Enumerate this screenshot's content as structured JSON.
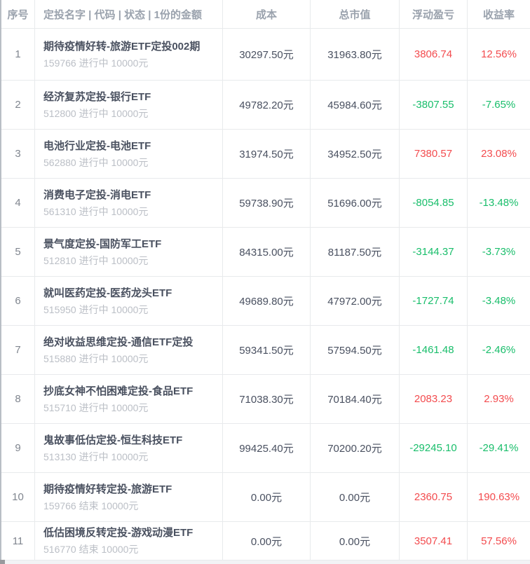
{
  "table": {
    "colors": {
      "profit_red": "#f34b4e",
      "loss_green": "#19be6b"
    },
    "header": {
      "col_index": "序号",
      "col_name": "定投名字 | 代码 | 状态 | 1份的金额",
      "col_cost": "成本",
      "col_market_value": "总市值",
      "col_pnl": "浮动盈亏",
      "col_return": "收益率"
    },
    "rows": [
      {
        "index": "1",
        "name": "期待疫情好转-旅游ETF定投002期",
        "code": "159766",
        "status": "进行中",
        "amount": "10000元",
        "cost": "30297.50元",
        "market_value": "31963.80元",
        "pnl": "3806.74",
        "return": "12.56%",
        "trend": "up"
      },
      {
        "index": "2",
        "name": "经济复苏定投-银行ETF",
        "code": "512800",
        "status": "进行中",
        "amount": "10000元",
        "cost": "49782.20元",
        "market_value": "45984.60元",
        "pnl": "-3807.55",
        "return": "-7.65%",
        "trend": "down"
      },
      {
        "index": "3",
        "name": "电池行业定投-电池ETF",
        "code": "562880",
        "status": "进行中",
        "amount": "10000元",
        "cost": "31974.50元",
        "market_value": "34952.50元",
        "pnl": "7380.57",
        "return": "23.08%",
        "trend": "up"
      },
      {
        "index": "4",
        "name": "消费电子定投-消电ETF",
        "code": "561310",
        "status": "进行中",
        "amount": "10000元",
        "cost": "59738.90元",
        "market_value": "51696.00元",
        "pnl": "-8054.85",
        "return": "-13.48%",
        "trend": "down"
      },
      {
        "index": "5",
        "name": "景气度定投-国防军工ETF",
        "code": "512810",
        "status": "进行中",
        "amount": "10000元",
        "cost": "84315.00元",
        "market_value": "81187.50元",
        "pnl": "-3144.37",
        "return": "-3.73%",
        "trend": "down"
      },
      {
        "index": "6",
        "name": "就叫医药定投-医药龙头ETF",
        "code": "515950",
        "status": "进行中",
        "amount": "10000元",
        "cost": "49689.80元",
        "market_value": "47972.00元",
        "pnl": "-1727.74",
        "return": "-3.48%",
        "trend": "down"
      },
      {
        "index": "7",
        "name": "绝对收益思维定投-通信ETF定投",
        "code": "515880",
        "status": "进行中",
        "amount": "10000元",
        "cost": "59341.50元",
        "market_value": "57594.50元",
        "pnl": "-1461.48",
        "return": "-2.46%",
        "trend": "down"
      },
      {
        "index": "8",
        "name": "抄底女神不怕困难定投-食品ETF",
        "code": "515710",
        "status": "进行中",
        "amount": "10000元",
        "cost": "71038.30元",
        "market_value": "70184.40元",
        "pnl": "2083.23",
        "return": "2.93%",
        "trend": "up"
      },
      {
        "index": "9",
        "name": "鬼故事低估定投-恒生科技ETF",
        "code": "513130",
        "status": "进行中",
        "amount": "10000元",
        "cost": "99425.40元",
        "market_value": "70200.20元",
        "pnl": "-29245.10",
        "return": "-29.41%",
        "trend": "down"
      },
      {
        "index": "10",
        "name": "期待疫情好转定投-旅游ETF",
        "code": "159766",
        "status": "结束",
        "amount": "10000元",
        "cost": "0.00元",
        "market_value": "0.00元",
        "pnl": "2360.75",
        "return": "190.63%",
        "trend": "up"
      },
      {
        "index": "11",
        "name": "低估困境反转定投-游戏动漫ETF",
        "code": "516770",
        "status": "结束",
        "amount": "10000元",
        "cost": "0.00元",
        "market_value": "0.00元",
        "pnl": "3507.41",
        "return": "57.56%",
        "trend": "up"
      }
    ]
  }
}
